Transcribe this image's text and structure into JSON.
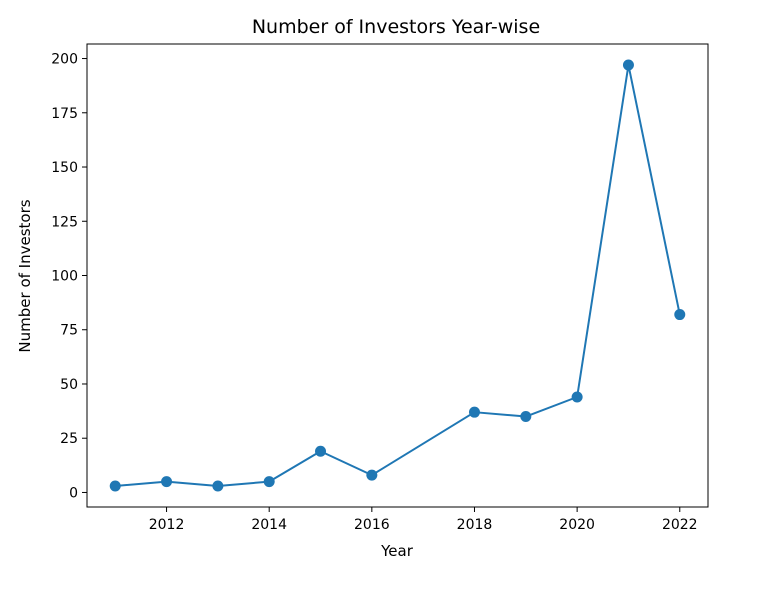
{
  "chart_data": {
    "type": "line",
    "title": "Number of Investors Year-wise",
    "xlabel": "Year",
    "ylabel": "Number of Investors",
    "x": [
      2011,
      2012,
      2013,
      2014,
      2015,
      2016,
      2018,
      2019,
      2020,
      2021,
      2022
    ],
    "series": [
      {
        "values": [
          3,
          5,
          3,
          5,
          19,
          8,
          37,
          35,
          44,
          197,
          82
        ]
      }
    ],
    "xticks": [
      "2012",
      "2014",
      "2016",
      "2018",
      "2020",
      "2022"
    ],
    "yticks": [
      "0",
      "25",
      "50",
      "75",
      "100",
      "125",
      "150",
      "175",
      "200"
    ],
    "xlim": [
      2010.45,
      2022.55
    ],
    "ylim": [
      -6.7,
      206.7
    ],
    "grid": false,
    "colors": {
      "line": "#1f77b4",
      "axes": "#000000"
    }
  }
}
